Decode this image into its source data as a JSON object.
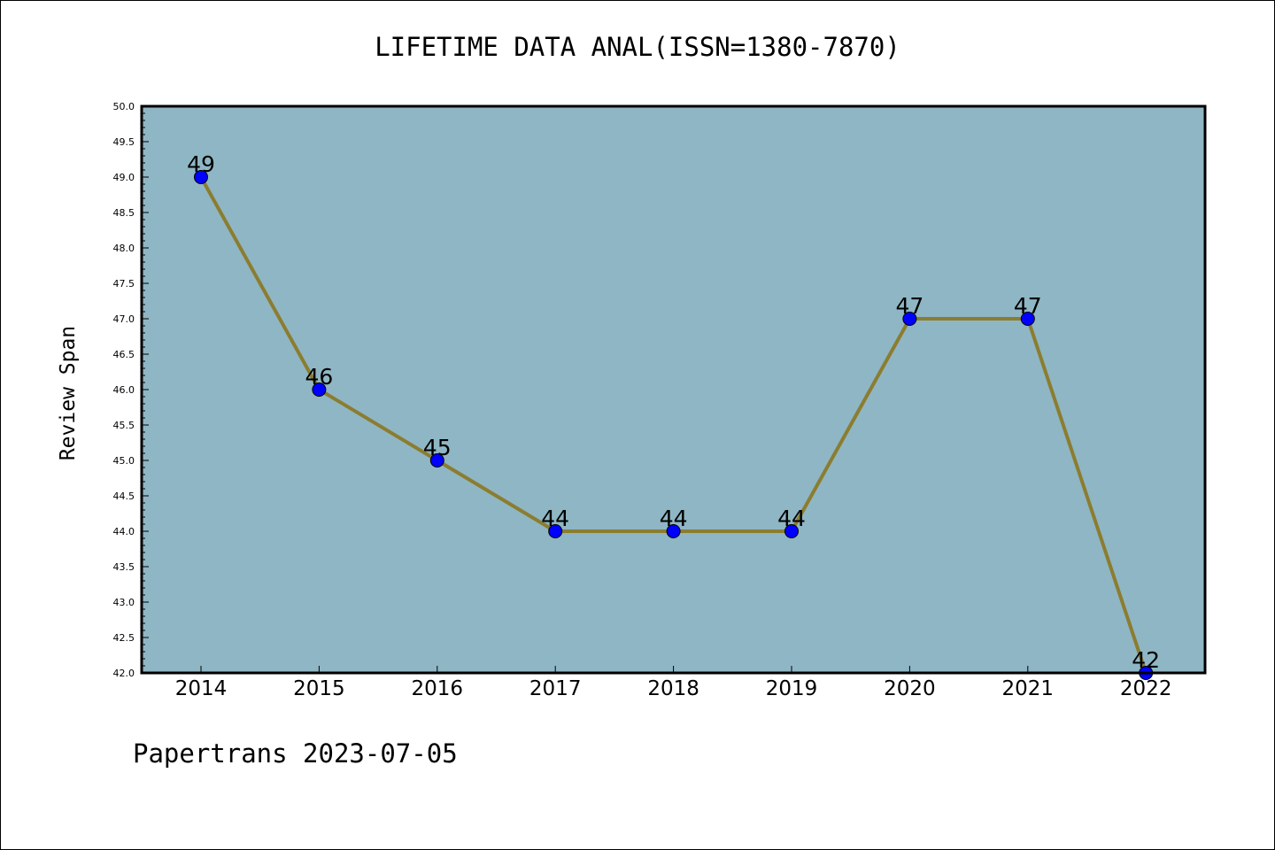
{
  "chart_data": {
    "type": "line",
    "title": "LIFETIME DATA ANAL(ISSN=1380-7870)",
    "xlabel": "",
    "ylabel": "Review Span",
    "categories": [
      "2014",
      "2015",
      "2016",
      "2017",
      "2018",
      "2019",
      "2020",
      "2021",
      "2022"
    ],
    "values": [
      49,
      46,
      45,
      44,
      44,
      44,
      47,
      47,
      42
    ],
    "ylim": [
      42.0,
      50.0
    ],
    "yticks": [
      "42.0",
      "42.5",
      "43.0",
      "43.5",
      "44.0",
      "44.5",
      "45.0",
      "45.5",
      "46.0",
      "46.5",
      "47.0",
      "47.5",
      "48.0",
      "48.5",
      "49.0",
      "49.5",
      "50.0"
    ],
    "data_labels": [
      "49",
      "46",
      "45",
      "44",
      "44",
      "44",
      "47",
      "47",
      "42"
    ],
    "grid": false,
    "colors": {
      "plot_background": "#8fb6c4",
      "line": "#8b7d30",
      "marker": "#0000ff"
    }
  },
  "footer": {
    "note": "Papertrans 2023-07-05"
  }
}
